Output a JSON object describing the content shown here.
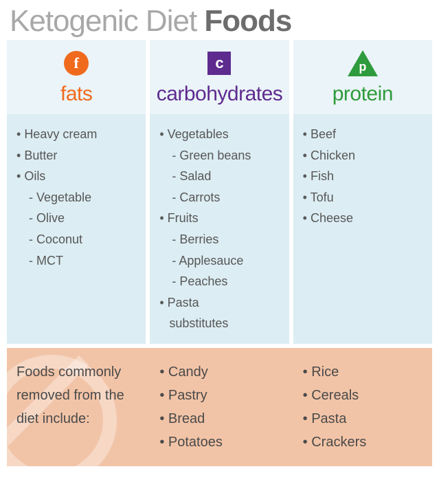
{
  "title_light": "Ketogenic Diet ",
  "title_bold": "Foods",
  "categories": {
    "fats": {
      "label": "fats",
      "color": "#f06a1e",
      "icon_letter": "f",
      "items": [
        {
          "t": "Heavy cream",
          "lvl": 0
        },
        {
          "t": "Butter",
          "lvl": 0
        },
        {
          "t": "Oils",
          "lvl": 0
        },
        {
          "t": "Vegetable",
          "lvl": 1,
          "dash": true
        },
        {
          "t": "Olive",
          "lvl": 1
        },
        {
          "t": "Coconut",
          "lvl": 1
        },
        {
          "t": "MCT",
          "lvl": 1
        }
      ]
    },
    "carbs": {
      "label": "carbohydrates",
      "color": "#5e2b8f",
      "icon_letter": "c",
      "items": [
        {
          "t": "Vegetables",
          "lvl": 0
        },
        {
          "t": "Green beans",
          "lvl": 1
        },
        {
          "t": "Salad",
          "lvl": 1
        },
        {
          "t": "Carrots",
          "lvl": 1
        },
        {
          "t": "Fruits",
          "lvl": 0
        },
        {
          "t": "Berries",
          "lvl": 1
        },
        {
          "t": "Applesauce",
          "lvl": 1
        },
        {
          "t": "Peaches",
          "lvl": 1
        },
        {
          "t": "Pasta",
          "lvl": 0
        },
        {
          "t": "substitutes",
          "lvl": 0,
          "cont": true
        }
      ]
    },
    "protein": {
      "label": "protein",
      "color": "#2e9b3c",
      "icon_letter": "p",
      "items": [
        {
          "t": "Beef",
          "lvl": 0
        },
        {
          "t": "Chicken",
          "lvl": 0
        },
        {
          "t": "Fish",
          "lvl": 0
        },
        {
          "t": "Tofu",
          "lvl": 0
        },
        {
          "t": "Cheese",
          "lvl": 0
        }
      ]
    }
  },
  "removed": {
    "intro": "Foods commonly removed from the diet include:",
    "col1": [
      "Candy",
      "Pastry",
      "Bread",
      "Potatoes"
    ],
    "col2": [
      "Rice",
      "Cereals",
      "Pasta",
      "Crackers"
    ]
  },
  "style": {
    "header_bg": "#ebf4f8",
    "body_bg": "#dcedf3",
    "removed_bg": "#f2c4a7",
    "text_color": "#575757",
    "title_light_color": "#a8a8a8",
    "title_bold_color": "#6d6d6d",
    "title_fontsize": 44,
    "category_fontsize": 30,
    "item_fontsize": 18,
    "removed_fontsize": 20
  }
}
